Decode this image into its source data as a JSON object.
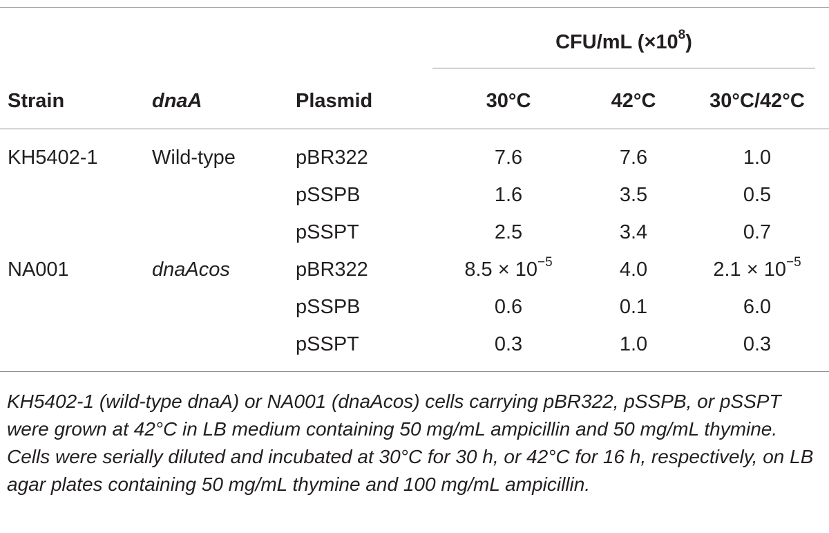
{
  "table": {
    "group_header": {
      "label": "CFU/mL (×10",
      "exp": "8",
      "close": ")"
    },
    "columns": [
      "Strain",
      "dnaA",
      "Plasmid",
      "30°C",
      "42°C",
      "30°C/42°C"
    ],
    "rows": [
      {
        "strain": "KH5402-1",
        "dnaa": "Wild-type",
        "plasmid": "pBR322",
        "t30": {
          "base": "7.6",
          "exp": ""
        },
        "t42": "7.6",
        "ratio": {
          "base": "1.0",
          "exp": ""
        }
      },
      {
        "strain": "",
        "dnaa": "",
        "plasmid": "pSSPB",
        "t30": {
          "base": "1.6",
          "exp": ""
        },
        "t42": "3.5",
        "ratio": {
          "base": "0.5",
          "exp": ""
        }
      },
      {
        "strain": "",
        "dnaa": "",
        "plasmid": "pSSPT",
        "t30": {
          "base": "2.5",
          "exp": ""
        },
        "t42": "3.4",
        "ratio": {
          "base": "0.7",
          "exp": ""
        }
      },
      {
        "strain": "NA001",
        "dnaa": "dnaAcos",
        "plasmid": "pBR322",
        "t30": {
          "base": "8.5 × 10",
          "exp": "−5"
        },
        "t42": "4.0",
        "ratio": {
          "base": "2.1 × 10",
          "exp": "−5"
        }
      },
      {
        "strain": "",
        "dnaa": "",
        "plasmid": "pSSPB",
        "t30": {
          "base": "0.6",
          "exp": ""
        },
        "t42": "0.1",
        "ratio": {
          "base": "6.0",
          "exp": ""
        }
      },
      {
        "strain": "",
        "dnaa": "",
        "plasmid": "pSSPT",
        "t30": {
          "base": "0.3",
          "exp": ""
        },
        "t42": "1.0",
        "ratio": {
          "base": "0.3",
          "exp": ""
        }
      }
    ]
  },
  "caption": "KH5402-1 (wild-type dnaA) or NA001 (dnaAcos) cells carrying pBR322, pSSPB, or pSSPT were grown at 42°C in LB medium containing 50 mg/mL ampicillin and 50 mg/mL thymine. Cells were serially diluted and incubated at 30°C for 30 h, or 42°C for 16 h, respectively, on LB agar plates containing 50 mg/mL thymine and 100 mg/mL ampicillin."
}
